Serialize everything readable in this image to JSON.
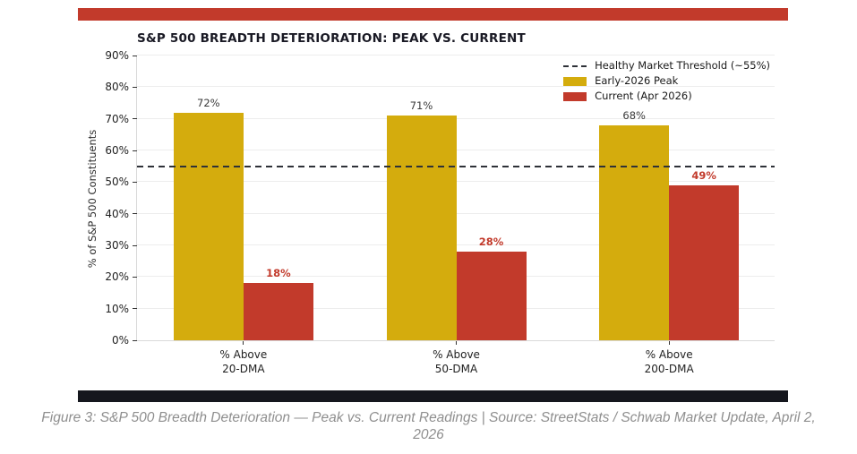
{
  "accents": {
    "top_bar_color": "#C23A2B",
    "bottom_bar_color": "#15171E"
  },
  "chart_data": {
    "type": "bar",
    "title": "S&P 500 BREADTH DETERIORATION: PEAK VS. CURRENT",
    "ylabel": "% of S&P 500 Constituents",
    "xlabel": "",
    "categories": [
      "% Above\n20-DMA",
      "% Above\n50-DMA",
      "% Above\n200-DMA"
    ],
    "series": [
      {
        "name": "Early-2026 Peak",
        "color": "#D4AC0D",
        "values": [
          72,
          71,
          68
        ],
        "value_label_color": "#3A3A3A",
        "value_label_bold": false
      },
      {
        "name": "Current (Apr 2026)",
        "color": "#C23A2B",
        "values": [
          18,
          28,
          49
        ],
        "value_label_color": "#C23A2B",
        "value_label_bold": true
      }
    ],
    "threshold_line": {
      "value": 55,
      "label": "Healthy Market Threshold (~55%)",
      "color": "#2E3138",
      "style": "dashed"
    },
    "ylim": [
      0,
      90
    ],
    "ytick_step": 10,
    "tick_suffix": "%",
    "grid": true,
    "legend_position": "upper right"
  },
  "figure_caption_lines": [
    "Figure 3: S&P 500 Breadth Deterioration — Peak vs. Current Readings | Source: StreetStats / Schwab Market Update, April 2,",
    "2026"
  ]
}
